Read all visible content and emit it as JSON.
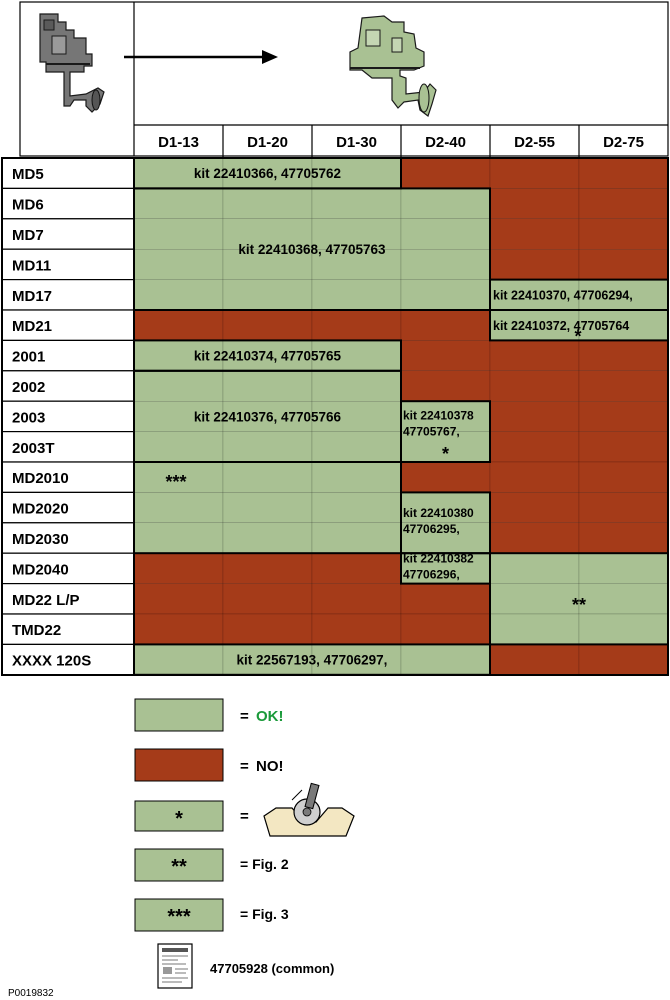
{
  "colors": {
    "ok": "#a9c193",
    "no": "#a53b19",
    "ok_text": "#1a9a3a",
    "line": "#000000",
    "faint": "#c9d6bd"
  },
  "header": {
    "columns": [
      "D1-13",
      "D1-20",
      "D1-30",
      "D2-40",
      "D2-55",
      "D2-75"
    ]
  },
  "rows": [
    "MD5",
    "MD6",
    "MD7",
    "MD11",
    "MD17",
    "MD21",
    "2001",
    "2002",
    "2003",
    "2003T",
    "MD2010",
    "MD2020",
    "MD2030",
    "MD2040",
    "MD22 L/P",
    "TMD22",
    "XXXX   120S"
  ],
  "grid": [
    [
      "ok",
      "ok",
      "ok",
      "no",
      "no",
      "no"
    ],
    [
      "ok",
      "ok",
      "ok",
      "ok",
      "no",
      "no"
    ],
    [
      "ok",
      "ok",
      "ok",
      "ok",
      "no",
      "no"
    ],
    [
      "ok",
      "ok",
      "ok",
      "ok",
      "no",
      "no"
    ],
    [
      "ok",
      "ok",
      "ok",
      "ok",
      "ok",
      "ok"
    ],
    [
      "no",
      "no",
      "no",
      "no",
      "ok",
      "ok"
    ],
    [
      "ok",
      "ok",
      "ok",
      "no",
      "no",
      "no"
    ],
    [
      "ok",
      "ok",
      "ok",
      "no",
      "no",
      "no"
    ],
    [
      "ok",
      "ok",
      "ok",
      "ok",
      "no",
      "no"
    ],
    [
      "ok",
      "ok",
      "ok",
      "ok",
      "no",
      "no"
    ],
    [
      "ok",
      "ok",
      "ok",
      "no",
      "no",
      "no"
    ],
    [
      "ok",
      "ok",
      "ok",
      "ok",
      "no",
      "no"
    ],
    [
      "ok",
      "ok",
      "ok",
      "ok",
      "no",
      "no"
    ],
    [
      "no",
      "no",
      "no",
      "ok",
      "ok",
      "ok"
    ],
    [
      "no",
      "no",
      "no",
      "no",
      "ok",
      "ok"
    ],
    [
      "no",
      "no",
      "no",
      "no",
      "ok",
      "ok"
    ],
    [
      "ok",
      "ok",
      "ok",
      "ok",
      "no",
      "no"
    ]
  ],
  "kits": [
    {
      "r0": 0,
      "c0": 0,
      "r1": 0,
      "c1": 2,
      "lines": [
        "kit 22410366,   47705762"
      ],
      "star": ""
    },
    {
      "r0": 1,
      "c0": 0,
      "r1": 4,
      "c1": 3,
      "lines": [
        "kit 22410368,   47705763"
      ],
      "star": ""
    },
    {
      "r0": 4,
      "c0": 4,
      "r1": 4,
      "c1": 5,
      "lines": [
        "kit 22410370, 47706294,"
      ],
      "star": ""
    },
    {
      "r0": 5,
      "c0": 4,
      "r1": 5,
      "c1": 5,
      "lines": [
        "kit 22410372, 47705764"
      ],
      "star": "*"
    },
    {
      "r0": 6,
      "c0": 0,
      "r1": 6,
      "c1": 2,
      "lines": [
        "kit 22410374,   47705765"
      ],
      "star": ""
    },
    {
      "r0": 7,
      "c0": 0,
      "r1": 9,
      "c1": 2,
      "lines": [
        "kit 22410376,   47705766"
      ],
      "star": ""
    },
    {
      "r0": 8,
      "c0": 3,
      "r1": 9,
      "c1": 3,
      "lines": [
        "kit 22410378",
        "47705767,"
      ],
      "star": "*"
    },
    {
      "r0": 10,
      "c0": 0,
      "r1": 12,
      "c1": 2,
      "lines": [],
      "star": "***"
    },
    {
      "r0": 11,
      "c0": 3,
      "r1": 12,
      "c1": 3,
      "lines": [
        "kit 22410380",
        "47706295,"
      ],
      "star": ""
    },
    {
      "r0": 13,
      "c0": 3,
      "r1": 13,
      "c1": 3,
      "lines": [
        "kit 22410382",
        "47706296,"
      ],
      "star": ""
    },
    {
      "r0": 13,
      "c0": 4,
      "r1": 15,
      "c1": 5,
      "lines": [],
      "star": "**"
    },
    {
      "r0": 16,
      "c0": 0,
      "r1": 16,
      "c1": 3,
      "lines": [
        "kit 22567193,   47706297,"
      ],
      "star": ""
    }
  ],
  "legend": {
    "ok_label": "= OK!",
    "no_label": "= NO!",
    "star1_symbol": "*",
    "star2_symbol": "**",
    "star2_label": "= Fig. 2",
    "star3_symbol": "***",
    "star3_label": "= Fig. 3",
    "equals": "=",
    "common_label": "47705928 (common)"
  },
  "doc_code": "P0019832"
}
